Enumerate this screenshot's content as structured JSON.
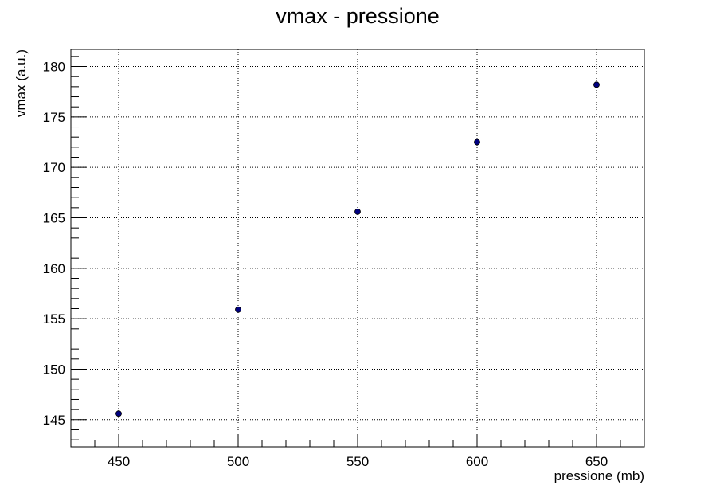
{
  "chart_data": {
    "type": "scatter",
    "title": "vmax - pressione",
    "xlabel": "pressione (mb)",
    "ylabel": "vmax (a.u.)",
    "xlim": [
      430,
      670
    ],
    "ylim": [
      142.3,
      181.7
    ],
    "x_ticks": [
      450,
      500,
      550,
      600,
      650
    ],
    "y_ticks": [
      145,
      150,
      155,
      160,
      165,
      170,
      175,
      180
    ],
    "x_tick_labels": [
      "450",
      "500",
      "550",
      "600",
      "650"
    ],
    "y_tick_labels": [
      "145",
      "150",
      "155",
      "160",
      "165",
      "170",
      "175",
      "180"
    ],
    "grid": true,
    "marker_color": "#000080",
    "series": [
      {
        "x": [
          450,
          500,
          550,
          600,
          650
        ],
        "y": [
          145.6,
          155.9,
          165.6,
          172.5,
          178.2
        ]
      }
    ]
  }
}
